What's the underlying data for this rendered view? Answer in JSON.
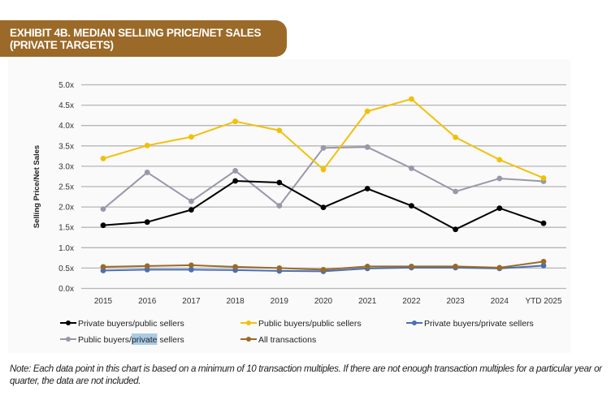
{
  "header": {
    "title_line1": "EXHIBIT 4B. MEDIAN SELLING PRICE/NET SALES",
    "title_line2": "(PRIVATE TARGETS)",
    "badge_color": "#9b6a28"
  },
  "note": "Note: Each data point in this chart is based on a minimum of 10 transaction multiples. If there are not enough transaction multiples for a particular year or quarter, the data are not included.",
  "chart_data": {
    "type": "line",
    "title": "Exhibit 4B. Median Selling Price/Net Sales (Private Targets)",
    "xlabel": "",
    "ylabel": "Selling Price/Net Sales",
    "categories": [
      "2015",
      "2016",
      "2017",
      "2018",
      "2019",
      "2020",
      "2021",
      "2022",
      "2023",
      "2024",
      "YTD 2025"
    ],
    "ylim": [
      0,
      5
    ],
    "yticks": [
      0,
      0.5,
      1.0,
      1.5,
      2.0,
      2.5,
      3.0,
      3.5,
      4.0,
      4.5,
      5.0
    ],
    "ytick_labels": [
      "0.0x",
      "0.5x",
      "1.0x",
      "1.5x",
      "2.0x",
      "2.5x",
      "3.0x",
      "3.5x",
      "4.0x",
      "4.5x",
      "5.0x"
    ],
    "grid": true,
    "legend_position": "bottom",
    "series": [
      {
        "name": "Private buyers/public sellers",
        "color": "#000000",
        "values": [
          1.55,
          1.63,
          1.93,
          2.64,
          2.6,
          1.99,
          2.45,
          2.03,
          1.45,
          1.97,
          1.6
        ]
      },
      {
        "name": "Public buyers/public sellers",
        "color": "#f2c00a",
        "values": [
          3.19,
          3.51,
          3.72,
          4.1,
          3.88,
          2.92,
          4.35,
          4.65,
          3.71,
          3.16,
          2.71
        ]
      },
      {
        "name": "Private buyers/private sellers",
        "color": "#4a6fb5",
        "values": [
          0.44,
          0.46,
          0.46,
          0.45,
          0.43,
          0.42,
          0.49,
          0.51,
          0.51,
          0.49,
          0.56
        ]
      },
      {
        "name": "Public buyers/private sellers",
        "color": "#9898aa",
        "values": [
          1.95,
          2.85,
          2.14,
          2.89,
          2.03,
          3.45,
          3.47,
          2.95,
          2.38,
          2.7,
          2.63
        ]
      },
      {
        "name": "All transactions",
        "color": "#9b6a28",
        "values": [
          0.53,
          0.55,
          0.57,
          0.53,
          0.5,
          0.46,
          0.54,
          0.54,
          0.54,
          0.51,
          0.66
        ]
      }
    ],
    "legend_selection_highlight": {
      "series_index": 3,
      "selected_text": "private"
    }
  }
}
